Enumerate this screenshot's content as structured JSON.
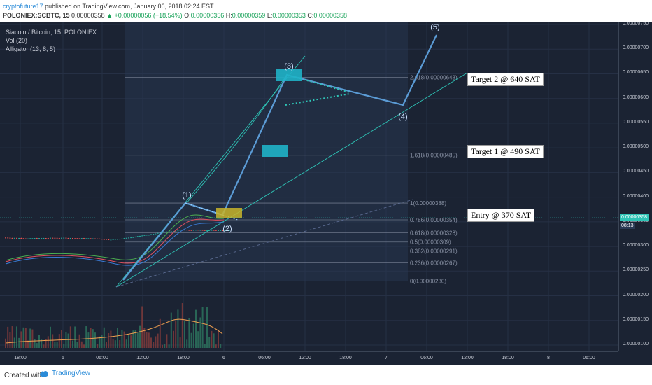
{
  "header": {
    "author": "cryptofuture17",
    "published": "published on TradingView.com, January 06, 2018 02:24 EST",
    "symbol": "POLONIEX:SCBTC, 15",
    "last": "0.00000358",
    "change": "+0.00000056 (+18.54%)",
    "o_label": "O:",
    "o": "0.00000356",
    "h_label": "H:",
    "h": "0.00000359",
    "l_label": "L:",
    "l": "0.00000353",
    "c_label": "C:",
    "c": "0.00000358"
  },
  "legend": {
    "title": "Siacoin / Bitcoin, 15, POLONIEX",
    "vol": "Vol (20)",
    "alligator": "Alligator (13, 8, 5)"
  },
  "annotations": {
    "target2": "Target 2 @ 640 SAT",
    "target1": "Target 1 @ 490 SAT",
    "entry": "Entry @ 370 SAT",
    "w1": "(1)",
    "w2": "(2)",
    "w3": "(3)",
    "w4": "(4)",
    "w5": "(5)"
  },
  "fib_labels": [
    "2.618(0.00000643)",
    "1.618(0.00000485)",
    "1(0.00000388)",
    "0.786(0.00000354)",
    "0.618(0.00000328)",
    "0.5(0.00000309)",
    "0.382(0.00000291)",
    "0.236(0.00000267)",
    "0(0.00000230)"
  ],
  "price_ticks": [
    "0.00000750",
    "0.00000700",
    "0.00000650",
    "0.00000600",
    "0.00000550",
    "0.00000500",
    "0.00000450",
    "0.00000400",
    "0.00000350",
    "0.00000300",
    "0.00000250",
    "0.00000200",
    "0.00000150",
    "0.00000100"
  ],
  "price_badge": "0.00000358",
  "countdown": "08:13",
  "time_ticks": [
    "18:00",
    "5",
    "06:00",
    "12:00",
    "18:00",
    "6",
    "06:00",
    "12:00",
    "18:00",
    "7",
    "06:00",
    "12:00",
    "18:00",
    "8",
    "06:00"
  ],
  "footer": {
    "created": "Created with",
    "brand": "TradingView"
  },
  "colors": {
    "background": "#1b2333",
    "up": "#26a69a",
    "down": "#ef5350",
    "wave": "#5b9bd5",
    "channel": "#2ec4b6",
    "fib": "#8a93a6",
    "box": "#1fb3c8",
    "entry_box": "#c8b52a"
  },
  "chart_data": {
    "type": "candlestick",
    "title": "Siacoin / Bitcoin, 15, POLONIEX",
    "ylim": [
      9e-07,
      7.5e-06
    ],
    "elliott_waves": [
      {
        "label": "(1)",
        "price": 3.88e-06
      },
      {
        "label": "(2)",
        "price": 3.5e-06
      },
      {
        "label": "(3)",
        "price": 6.43e-06
      },
      {
        "label": "(4)",
        "price": 5.85e-06
      },
      {
        "label": "(5)",
        "price": 7.2e-06
      }
    ],
    "fibonacci": [
      {
        "level": 2.618,
        "price": 6.43e-06
      },
      {
        "level": 1.618,
        "price": 4.85e-06
      },
      {
        "level": 1,
        "price": 3.88e-06
      },
      {
        "level": 0.786,
        "price": 3.54e-06
      },
      {
        "level": 0.618,
        "price": 3.28e-06
      },
      {
        "level": 0.5,
        "price": 3.09e-06
      },
      {
        "level": 0.382,
        "price": 2.91e-06
      },
      {
        "level": 0.236,
        "price": 2.67e-06
      },
      {
        "level": 0,
        "price": 2.3e-06
      }
    ],
    "targets": [
      {
        "label": "Target 2 @ 640 SAT",
        "price": 6.4e-06
      },
      {
        "label": "Target 1 @ 490 SAT",
        "price": 4.9e-06
      },
      {
        "label": "Entry @ 370 SAT",
        "price": 3.7e-06
      }
    ],
    "last_price": 3.58e-06
  }
}
